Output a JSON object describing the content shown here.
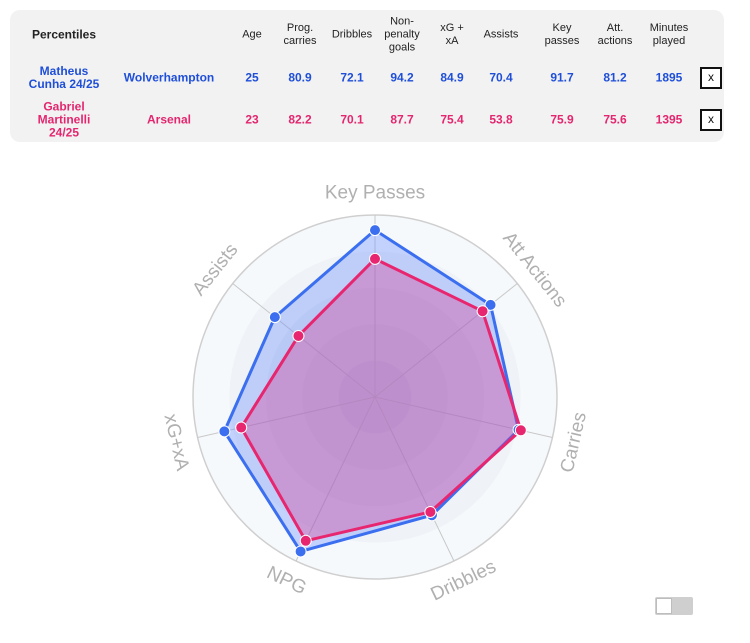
{
  "table": {
    "header": {
      "title": "Percentiles",
      "columns": [
        "Age",
        "Prog.\ncarries",
        "Dribbles",
        "Non-\npenalty\ngoals",
        "xG +\nxA",
        "Assists",
        "Key\npasses",
        "Att.\nactions",
        "Minutes\nplayed"
      ]
    },
    "rows": [
      {
        "player": "Matheus\nCunha 24/25",
        "team": "Wolverhampton",
        "values": [
          "25",
          "80.9",
          "72.1",
          "94.2",
          "84.9",
          "70.4",
          "91.7",
          "81.2",
          "1895"
        ],
        "close_label": "x",
        "color": "#1f4fd8"
      },
      {
        "player": "Gabriel\nMartinelli\n24/25",
        "team": "Arsenal",
        "values": [
          "23",
          "82.2",
          "70.1",
          "87.7",
          "75.4",
          "53.8",
          "75.9",
          "75.6",
          "1395"
        ],
        "close_label": "x",
        "color": "#e3266f"
      }
    ]
  },
  "chart_data": {
    "type": "radar",
    "axes": [
      "Key Passes",
      "Att Actions",
      "Carries",
      "Dribbles",
      "NPG",
      "xG+xA",
      "Assists"
    ],
    "range": [
      0,
      100
    ],
    "series": [
      {
        "name": "Matheus Cunha 24/25",
        "values": [
          91.7,
          81.2,
          80.9,
          72.1,
          94.2,
          84.9,
          70.4
        ],
        "color": "#3b6ff0",
        "fill": "rgba(90,130,255,0.33)"
      },
      {
        "name": "Gabriel Martinelli 24/25",
        "values": [
          75.9,
          75.6,
          82.2,
          70.1,
          87.7,
          75.4,
          53.8
        ],
        "color": "#e8266f",
        "fill": "rgba(220,50,140,0.33)"
      }
    ],
    "grid": true,
    "legend": "none"
  },
  "toggle": {
    "state": "off"
  }
}
